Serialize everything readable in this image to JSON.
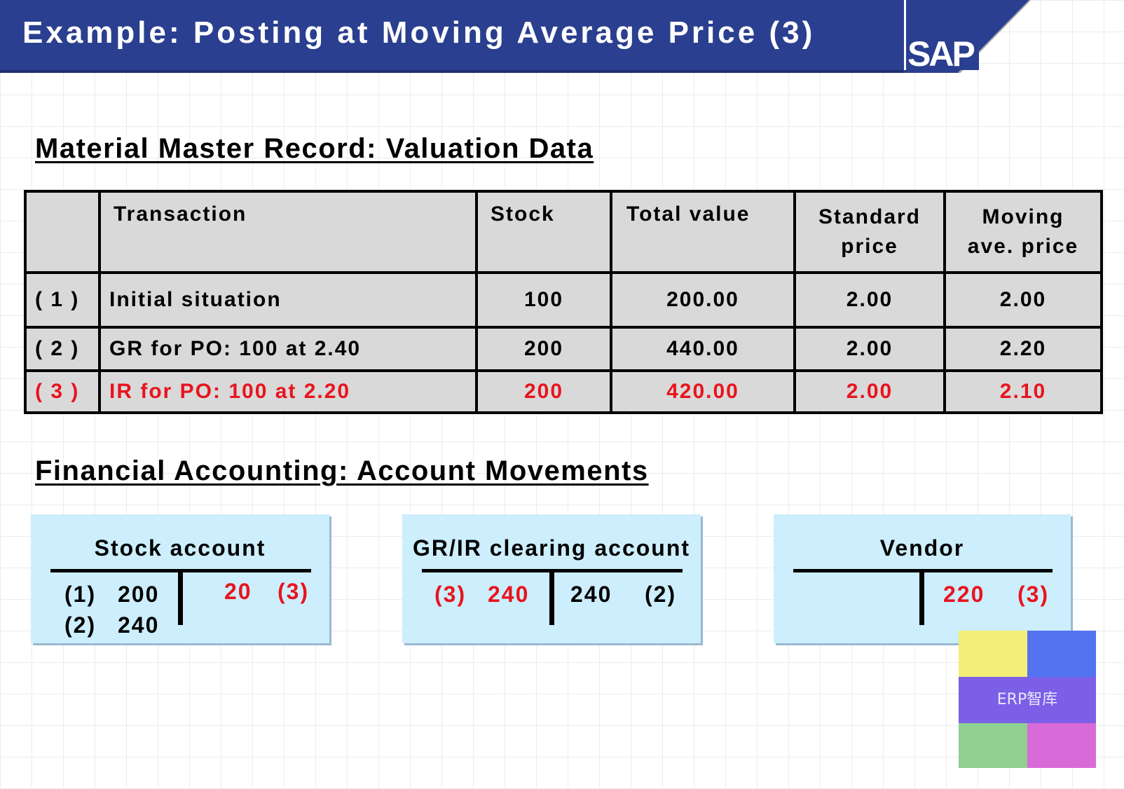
{
  "header": {
    "title": "Example: Posting at Moving Average Price (3)",
    "logo": "SAP"
  },
  "valuation": {
    "title": "Material Master Record: Valuation Data",
    "columns": {
      "num": "",
      "transaction": "Transaction",
      "stock": "Stock",
      "total_value": "Total value",
      "standard_price_1": "Standard",
      "standard_price_2": "price",
      "moving_price_1": "Moving",
      "moving_price_2": "ave. price"
    },
    "rows": [
      {
        "num": "( 1 )",
        "transaction": "Initial situation",
        "stock": "100",
        "total_value": "200.00",
        "standard_price": "2.00",
        "moving_price": "2.00"
      },
      {
        "num": "( 2 )",
        "transaction": "GR for PO: 100 at 2.40",
        "stock": "200",
        "total_value": "440.00",
        "standard_price": "2.00",
        "moving_price": "2.20"
      },
      {
        "num": "( 3 )",
        "transaction": "IR for PO: 100 at 2.20",
        "stock": "200",
        "total_value": "420.00",
        "standard_price": "2.00",
        "moving_price": "2.10"
      }
    ],
    "highlight_color": "#e8141e"
  },
  "accounting": {
    "title": "Financial Accounting: Account Movements",
    "stock_account": {
      "title": "Stock account",
      "debit": [
        {
          "ref": "(1)",
          "amount": "200"
        },
        {
          "ref": "(2)",
          "amount": "240"
        }
      ],
      "credit": [
        {
          "amount": "20",
          "ref": "(3)"
        }
      ]
    },
    "grir_account": {
      "title": "GR/IR clearing account",
      "debit": [
        {
          "ref": "(3)",
          "amount": "240"
        }
      ],
      "credit": [
        {
          "amount": "240",
          "ref": "(2)"
        }
      ]
    },
    "vendor_account": {
      "title": "Vendor",
      "credit": [
        {
          "amount": "220",
          "ref": "(3)"
        }
      ]
    }
  },
  "watermark": {
    "text": "ERP智库"
  },
  "colors": {
    "header_bg": "#2a3f8f",
    "table_bg": "#d9d9d9",
    "account_bg": "#cdeefc",
    "red": "#e8141e"
  }
}
